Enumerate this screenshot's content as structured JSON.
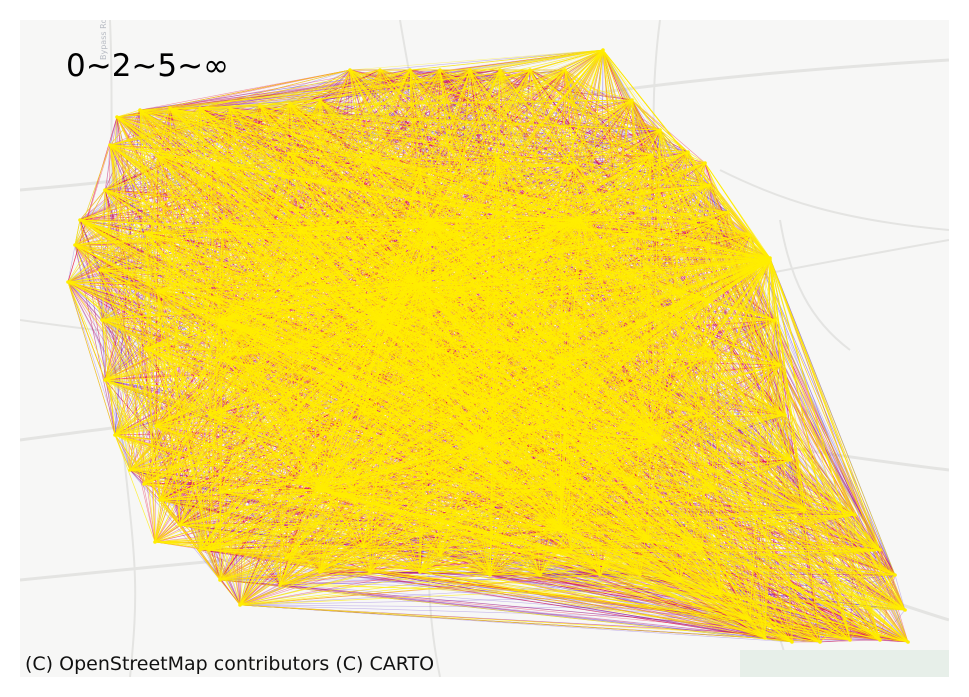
{
  "legend": {
    "label": "0~2~5~∞"
  },
  "attribution": {
    "text": "(C) OpenStreetMap contributors (C) CARTO"
  },
  "basemap_labels": {
    "road": "Bypass Rd"
  },
  "colors": {
    "background": "#f7f7f6",
    "road": "#e4e4e2",
    "park": "#e7efe9",
    "edge_low": "#ffee00",
    "edge_mid": "#e8103c",
    "edge_high": "#6a3cd6"
  },
  "flow_classes": [
    "0~2",
    "2~5",
    "5~∞"
  ]
}
